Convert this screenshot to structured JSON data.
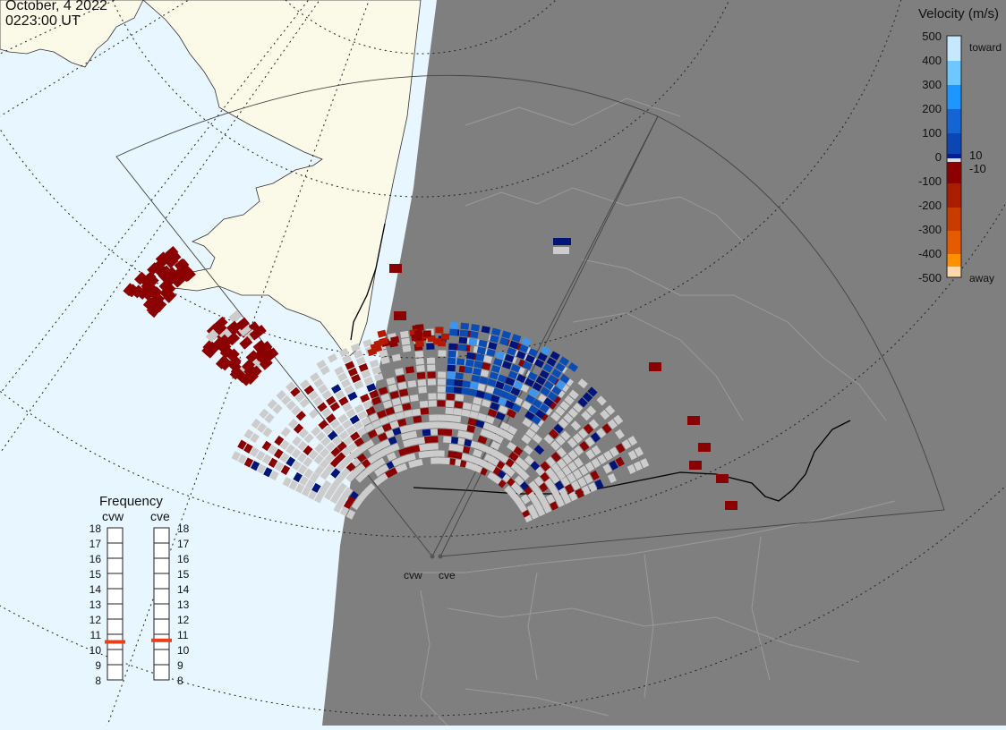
{
  "header": {
    "date": "October, 4 2022",
    "time": "0223:00 UT"
  },
  "colorbar": {
    "title": "Velocity (m/s)",
    "ticks": [
      "500",
      "400",
      "300",
      "200",
      "100",
      "0",
      "-100",
      "-200",
      "-300",
      "-400",
      "-500"
    ],
    "threshold_labels": [
      "10",
      "-10"
    ],
    "end_labels": {
      "top": "toward",
      "bottom": "away"
    },
    "colors": [
      "#c6e8ff",
      "#6cc8ff",
      "#1e96ff",
      "#1464d4",
      "#0a46b4",
      "#041e96",
      "#dcdcdc",
      "#8c0000",
      "#aa1e00",
      "#c83c00",
      "#e65a00",
      "#ff9000",
      "#ffd7a8"
    ]
  },
  "frequency_panel": {
    "title": "Frequency",
    "radars": [
      "cvw",
      "cve"
    ],
    "scale": [
      "18",
      "17",
      "16",
      "15",
      "14",
      "13",
      "12",
      "11",
      "10",
      "9",
      "8"
    ],
    "cvw_mhz": 10.5,
    "cve_mhz": 10.6,
    "marker_color": "#e8401a"
  },
  "map": {
    "station_labels": [
      "cvw",
      "cve"
    ],
    "nightside_color": "#7f7f7f",
    "ocean_color": "#e8f6ff",
    "land_color": "#fbf9e8",
    "outline_color": "#999999",
    "radar_echo_colors": {
      "ground_scatter": "#cccccc",
      "away_dark": "#8b0000",
      "away_mid": "#b41a00",
      "toward_dark": "#00157a",
      "toward_mid": "#0a4bb4",
      "toward_light": "#3c96f0"
    }
  }
}
